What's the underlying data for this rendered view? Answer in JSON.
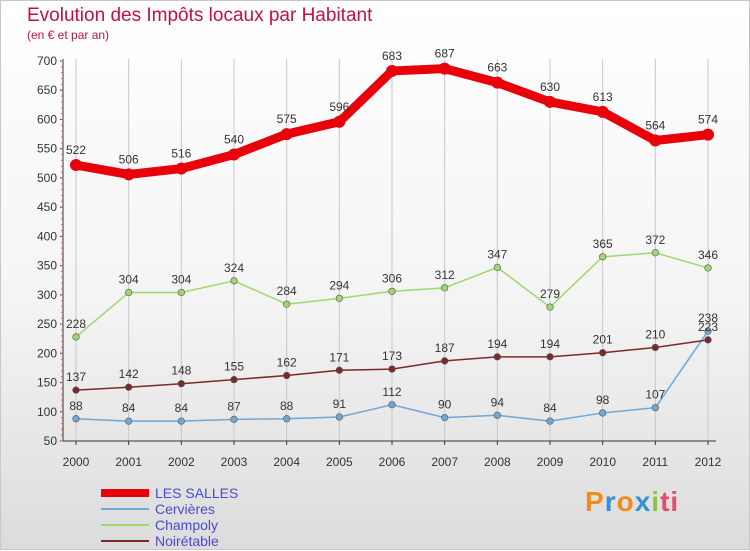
{
  "chart_data": {
    "type": "line",
    "title": "Evolution des Impôts locaux par Habitant",
    "subtitle": "(en € et par an)",
    "x": [
      "2000",
      "2001",
      "2002",
      "2003",
      "2004",
      "2005",
      "2006",
      "2007",
      "2008",
      "2009",
      "2010",
      "2011",
      "2012"
    ],
    "ylim": [
      50,
      700
    ],
    "yticks": [
      "50",
      "100",
      "150",
      "200",
      "250",
      "300",
      "350",
      "400",
      "450",
      "500",
      "550",
      "600",
      "650",
      "700"
    ],
    "grid": "vertical",
    "series": [
      {
        "name": "LES SALLES",
        "color": "#e8000b",
        "values": [
          522,
          506,
          516,
          540,
          575,
          596,
          683,
          687,
          663,
          630,
          613,
          564,
          574
        ],
        "labels": [
          "522",
          "506",
          "516",
          "540",
          "575",
          "596",
          "683",
          "687",
          "663",
          "630",
          "613",
          "564",
          "574"
        ]
      },
      {
        "name": "Cervières",
        "color": "#6fa8d6",
        "values": [
          88,
          84,
          84,
          87,
          88,
          91,
          112,
          90,
          94,
          84,
          98,
          107,
          238
        ],
        "labels": [
          "88",
          "84",
          "84",
          "87",
          "88",
          "91",
          "112",
          "90",
          "94",
          "84",
          "98",
          "107",
          "238"
        ]
      },
      {
        "name": "Champoly",
        "color": "#9ed86f",
        "values": [
          228,
          304,
          304,
          324,
          284,
          294,
          306,
          312,
          347,
          279,
          365,
          372,
          346
        ],
        "labels": [
          "228",
          "304",
          "304",
          "324",
          "284",
          "294",
          "306",
          "312",
          "347",
          "279",
          "365",
          "372",
          "346"
        ]
      },
      {
        "name": "Noirétable",
        "color": "#7a2a2a",
        "values": [
          137,
          142,
          148,
          155,
          162,
          171,
          173,
          187,
          194,
          194,
          201,
          210,
          223
        ],
        "labels": [
          "137",
          "142",
          "148",
          "155",
          "162",
          "171",
          "173",
          "187",
          "194",
          "194",
          "201",
          "210",
          "223"
        ]
      }
    ]
  },
  "logo": {
    "letters": [
      "P",
      "r",
      "o",
      "x",
      "i",
      "ti"
    ]
  }
}
